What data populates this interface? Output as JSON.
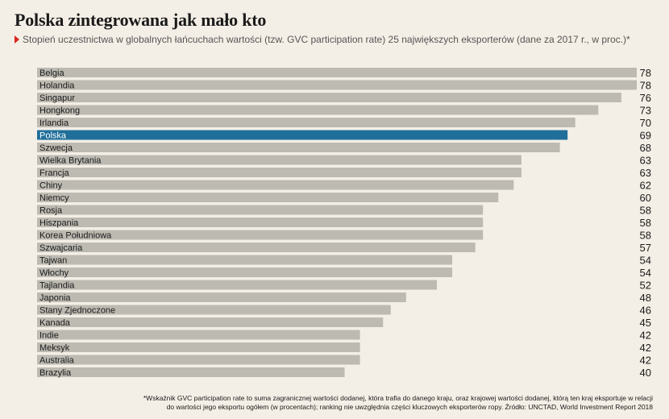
{
  "header": {
    "title": "Polska zintegrowana jak mało kto",
    "subtitle": "Stopień uczestnictwa w globalnych łańcuchach wartości (tzw. GVC participation rate) 25 największych eksporterów (dane za 2017 r., w proc.)*"
  },
  "chart_data": {
    "type": "bar",
    "orientation": "horizontal",
    "title": "Polska zintegrowana jak mało kto",
    "subtitle": "Stopień uczestnictwa w globalnych łańcuchach wartości (tzw. GVC participation rate) 25 największych eksporterów (dane za 2017 r., w proc.)*",
    "categories": [
      "Belgia",
      "Holandia",
      "Singapur",
      "Hongkong",
      "Irlandia",
      "Polska",
      "Szwecja",
      "Wielka Brytania",
      "Francja",
      "Chiny",
      "Niemcy",
      "Rosja",
      "Hiszpania",
      "Korea Południowa",
      "Szwajcaria",
      "Tajwan",
      "Włochy",
      "Tajlandia",
      "Japonia",
      "Stany Zjednoczone",
      "Kanada",
      "Indie",
      "Meksyk",
      "Australia",
      "Brazylia"
    ],
    "values": [
      78,
      78,
      76,
      73,
      70,
      69,
      68,
      63,
      63,
      62,
      60,
      58,
      58,
      58,
      57,
      54,
      54,
      52,
      48,
      46,
      45,
      42,
      42,
      42,
      40
    ],
    "highlight": "Polska",
    "xlim": [
      0,
      78
    ],
    "grid": false,
    "colors": {
      "bar": "#bdbab2",
      "highlight": "#1f6f9a",
      "highlight_text": "#ffffff"
    }
  },
  "footnote": {
    "line1": "*Wskaźnik GVC participation rate to suma zagranicznej wartości dodanej, która trafia do danego kraju, oraz krajowej wartości dodanej, którą ten kraj eksportuje w relacji",
    "line2": "do wartości jego eksportu ogółem (w procentach); ranking nie uwzględnia części kluczowych eksporterów ropy. Źródło: UNCTAD, World Investment Report 2018"
  }
}
